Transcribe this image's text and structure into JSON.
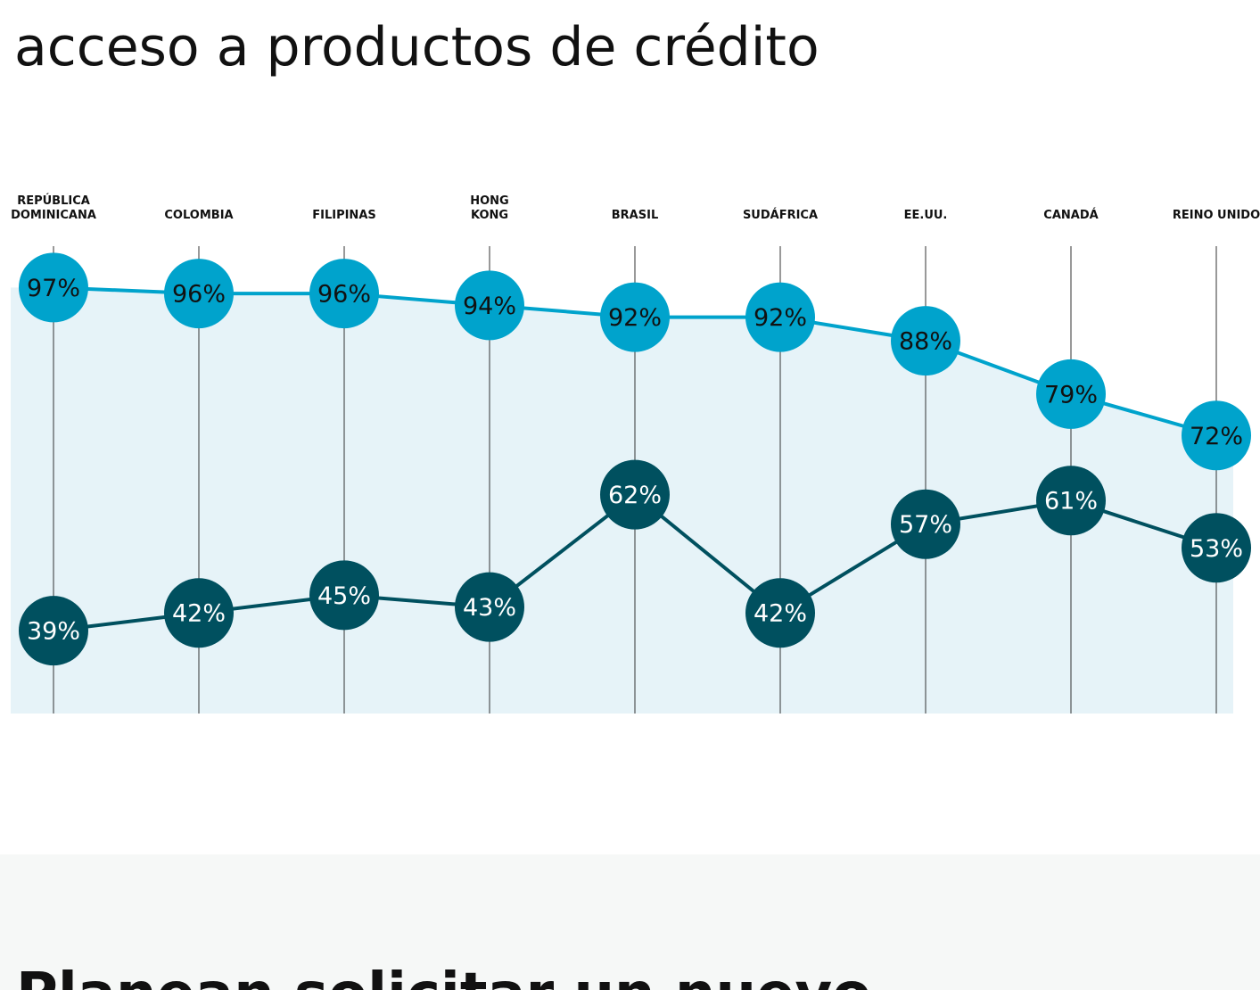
{
  "title": "acceso a productos de crédito",
  "chart_data": {
    "type": "line",
    "categories": [
      "REPÚBLICA\nDOMINICANA",
      "COLOMBIA",
      "FILIPINAS",
      "HONG\nKONG",
      "BRASIL",
      "SUDÁFRICA",
      "EE.UU.",
      "CANADÁ",
      "REINO UNIDO"
    ],
    "series": [
      {
        "color": "#00a3cc",
        "label_color": "#111111",
        "values": [
          97,
          96,
          96,
          94,
          92,
          92,
          88,
          79,
          72
        ],
        "value_labels": [
          "97%",
          "96%",
          "96%",
          "94%",
          "92%",
          "92%",
          "88%",
          "79%",
          "72%"
        ]
      },
      {
        "color": "#00505f",
        "label_color": "#ffffff",
        "values": [
          39,
          42,
          45,
          43,
          62,
          42,
          57,
          61,
          53
        ],
        "value_labels": [
          "39%",
          "42%",
          "45%",
          "43%",
          "62%",
          "42%",
          "57%",
          "61%",
          "53%"
        ]
      }
    ],
    "ylim": [
      25,
      104
    ]
  },
  "next_section": {
    "title": "Planean solicitar un nuevo"
  }
}
